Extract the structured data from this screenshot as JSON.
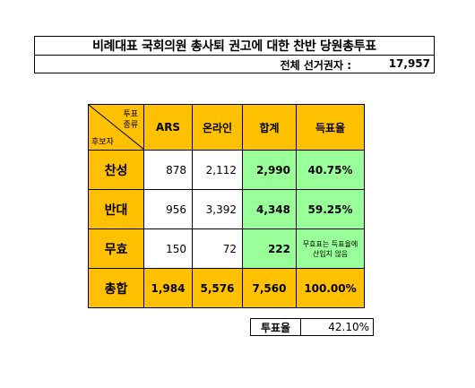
{
  "title": "비례대표 국회의원 총사퇴 권고에 대한 찬반 당원총투표",
  "voters": {
    "label": "전체 선거권자 :",
    "value": "17,957"
  },
  "table": {
    "corner": {
      "top_line1": "투표",
      "top_line2": "종류",
      "bottom": "후보자"
    },
    "headers": [
      "ARS",
      "온라인",
      "합계",
      "득표율"
    ],
    "rows": [
      {
        "label": "찬성",
        "ars": "878",
        "online": "2,112",
        "total": "2,990",
        "rate": "40.75%"
      },
      {
        "label": "반대",
        "ars": "956",
        "online": "3,392",
        "total": "4,348",
        "rate": "59.25%"
      },
      {
        "label": "무효",
        "ars": "150",
        "online": "72",
        "total": "222",
        "rate": "무효표는 득표율에 산입치 않음"
      }
    ],
    "sum_row": {
      "label": "총합",
      "ars": "1,984",
      "online": "5,576",
      "total": "7,560",
      "rate": "100.00%"
    }
  },
  "turnout": {
    "label": "투표율",
    "value": "42.10%"
  },
  "colors": {
    "header_fill": "#ffc000",
    "total_fill": "#99ff99"
  }
}
